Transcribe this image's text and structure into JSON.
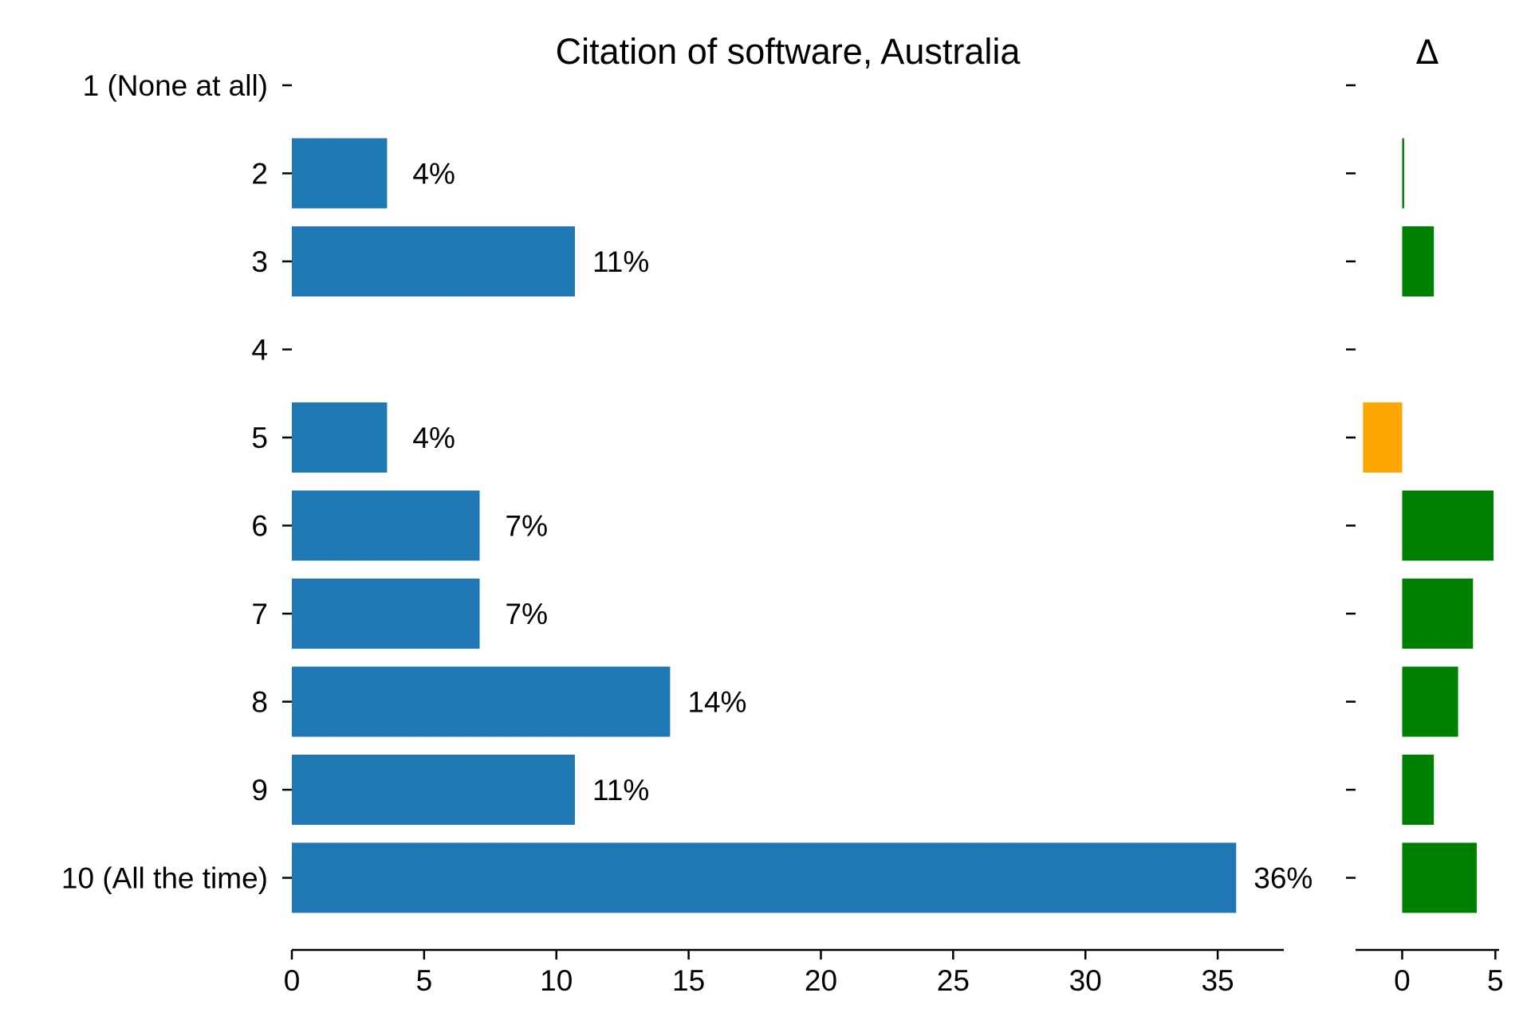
{
  "chart_data": [
    {
      "type": "bar",
      "orientation": "horizontal",
      "title": "Citation of software, Australia",
      "categories": [
        "1 (None at all)",
        "2",
        "3",
        "4",
        "5",
        "6",
        "7",
        "8",
        "9",
        "10 (All the time)"
      ],
      "values": [
        0,
        3.6,
        10.7,
        0,
        3.6,
        7.1,
        7.1,
        14.3,
        10.7,
        35.7
      ],
      "data_labels": [
        "",
        "4%",
        "11%",
        "",
        "4%",
        "7%",
        "7%",
        "14%",
        "11%",
        "36%"
      ],
      "xlim": [
        0,
        37.5
      ],
      "xticks": [
        0,
        5,
        10,
        15,
        20,
        25,
        30,
        35
      ],
      "bar_color": "#1f77b4",
      "grid": false
    },
    {
      "type": "bar",
      "orientation": "horizontal",
      "title": "Δ",
      "categories": [
        "1 (None at all)",
        "2",
        "3",
        "4",
        "5",
        "6",
        "7",
        "8",
        "9",
        "10 (All the time)"
      ],
      "values": [
        0,
        0.1,
        1.7,
        0,
        -2.1,
        4.9,
        3.8,
        3.0,
        1.7,
        4.0
      ],
      "xlim": [
        -2.5,
        5.2
      ],
      "xticks": [
        0,
        5
      ],
      "positive_color": "#008000",
      "negative_color": "#ffa500",
      "grid": false
    }
  ]
}
